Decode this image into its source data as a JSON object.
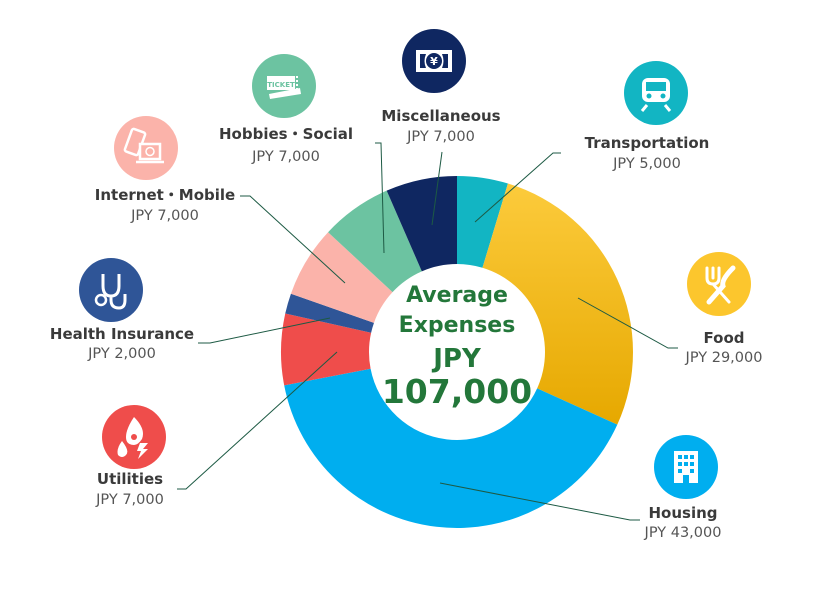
{
  "chart_data": {
    "type": "pie",
    "donut": true,
    "center_text": {
      "line1": "Average",
      "line2": "Expenses",
      "line3": "JPY",
      "total": "107,000"
    },
    "categories": [
      "Transportation",
      "Food",
      "Housing",
      "Utilities",
      "Health Insurance",
      "Internet・Mobile",
      "Hobbies・Social",
      "Miscellaneous"
    ],
    "values": [
      5000,
      29000,
      43000,
      7000,
      2000,
      7000,
      7000,
      7000
    ],
    "value_labels": [
      "JPY 5,000",
      "JPY 29,000",
      "JPY 43,000",
      "JPY 7,000",
      "JPY 2,000",
      "JPY 7,000",
      "JPY 7,000",
      "JPY 7,000"
    ],
    "colors": [
      "#12b5c3",
      "#fcc62d",
      "#00aeef",
      "#ef4d4b",
      "#2f5597",
      "#fbb3aa",
      "#6cc3a1",
      "#0f2761"
    ],
    "icons": [
      "train-icon",
      "fork-knife-icon",
      "building-icon",
      "fire-water-bolt-icon",
      "stethoscope-icon",
      "phone-laptop-icon",
      "ticket-icon",
      "yen-banknote-icon"
    ],
    "start": "top",
    "direction": "clockwise"
  }
}
